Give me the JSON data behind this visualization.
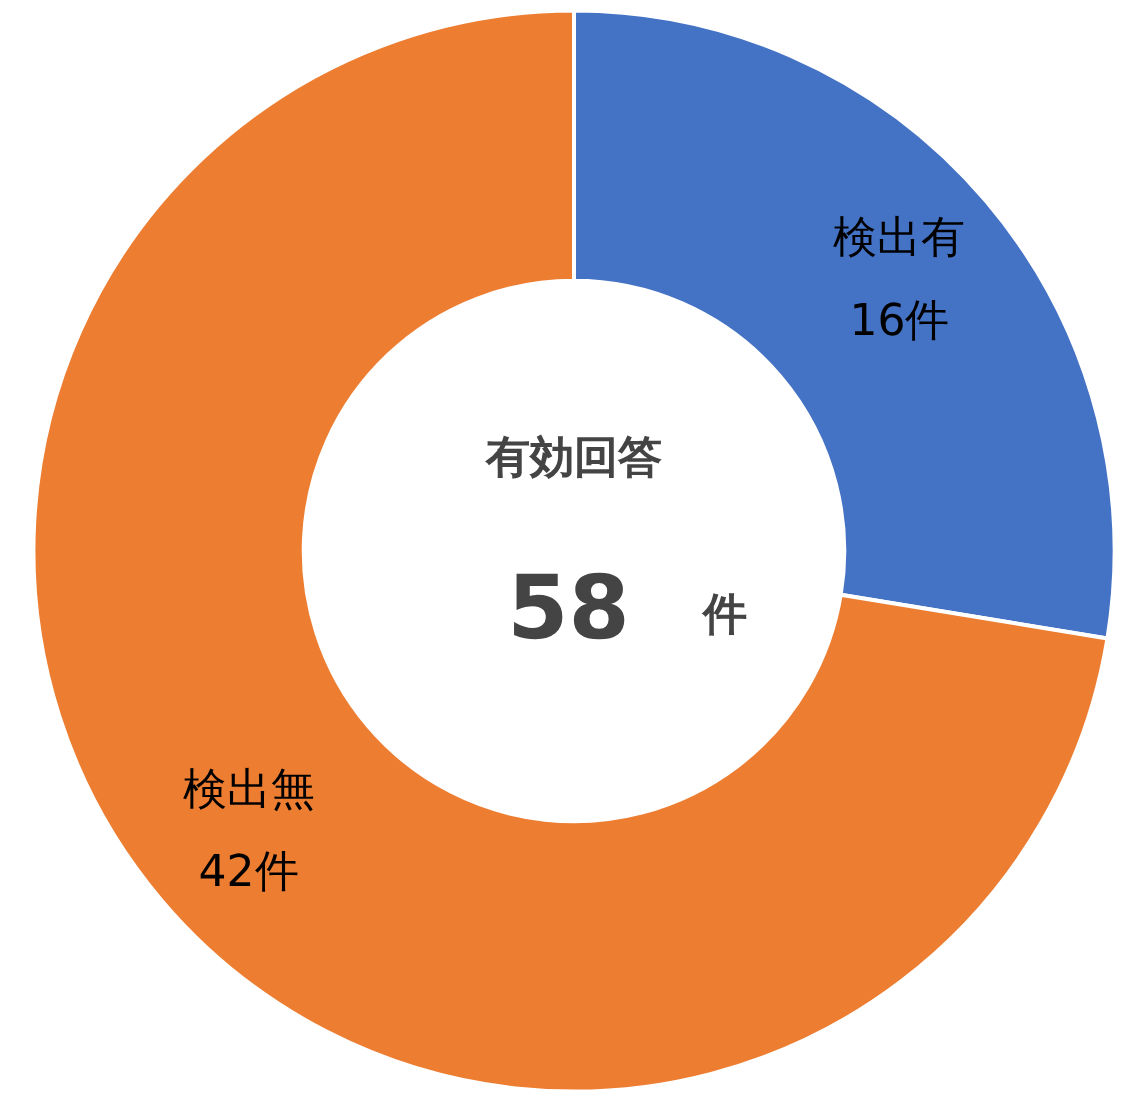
{
  "chart_data": {
    "type": "donut",
    "categories": [
      "検出有",
      "検出無"
    ],
    "values": [
      16,
      42
    ],
    "colors": [
      "#4472c4",
      "#ed7d31"
    ],
    "value_labels": [
      "16件",
      "42件"
    ],
    "annotations": [
      "有効回答",
      "58",
      "件"
    ]
  }
}
